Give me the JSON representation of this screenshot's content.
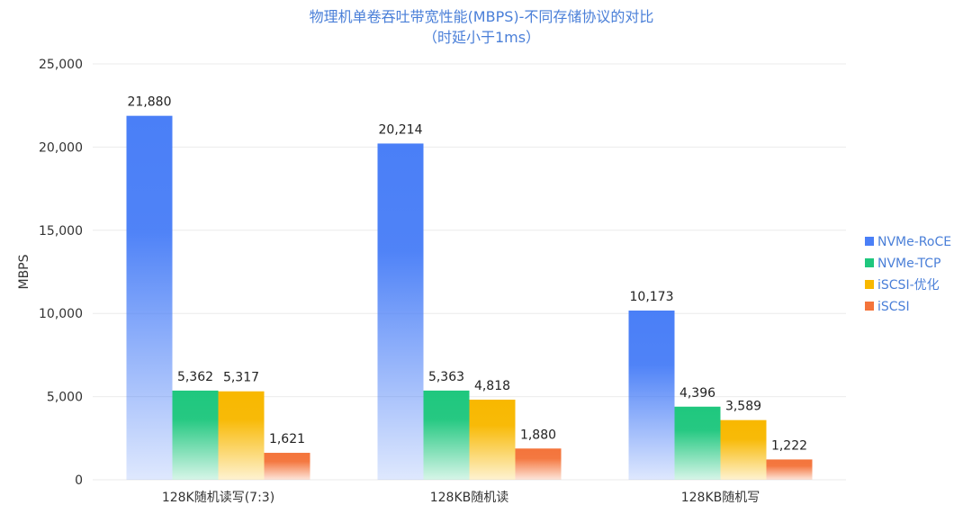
{
  "chart_data": {
    "type": "bar",
    "title": "物理机单卷吞吐带宽性能(MBPS)-不同存储协议的对比",
    "subtitle": "（时延小于1ms）",
    "ylabel": "MBPS",
    "xlabel": "",
    "ylim": [
      0,
      25000
    ],
    "yticks": [
      0,
      5000,
      10000,
      15000,
      20000,
      25000
    ],
    "ytick_labels": [
      "0",
      "5,000",
      "10,000",
      "15,000",
      "20,000",
      "25,000"
    ],
    "grid": true,
    "legend_position": "right",
    "categories": [
      "128K随机读写(7:3)",
      "128KB随机读",
      "128KB随机写"
    ],
    "series": [
      {
        "name": "NVMe-RoCE",
        "color": "#4a7ff7",
        "values": [
          21880,
          20214,
          10173
        ],
        "labels": [
          "21,880",
          "20,214",
          "10,173"
        ]
      },
      {
        "name": "NVMe-TCP",
        "color": "#1fc77e",
        "values": [
          5362,
          5363,
          4396
        ],
        "labels": [
          "5,362",
          "5,363",
          "4,396"
        ]
      },
      {
        "name": "iSCSI-优化",
        "color": "#f8b800",
        "values": [
          5317,
          4818,
          3589
        ],
        "labels": [
          "5,317",
          "4,818",
          "3,589"
        ]
      },
      {
        "name": "iSCSI",
        "color": "#f4743b",
        "values": [
          1621,
          1880,
          1222
        ],
        "labels": [
          "1,621",
          "1,880",
          "1,222"
        ]
      }
    ]
  }
}
